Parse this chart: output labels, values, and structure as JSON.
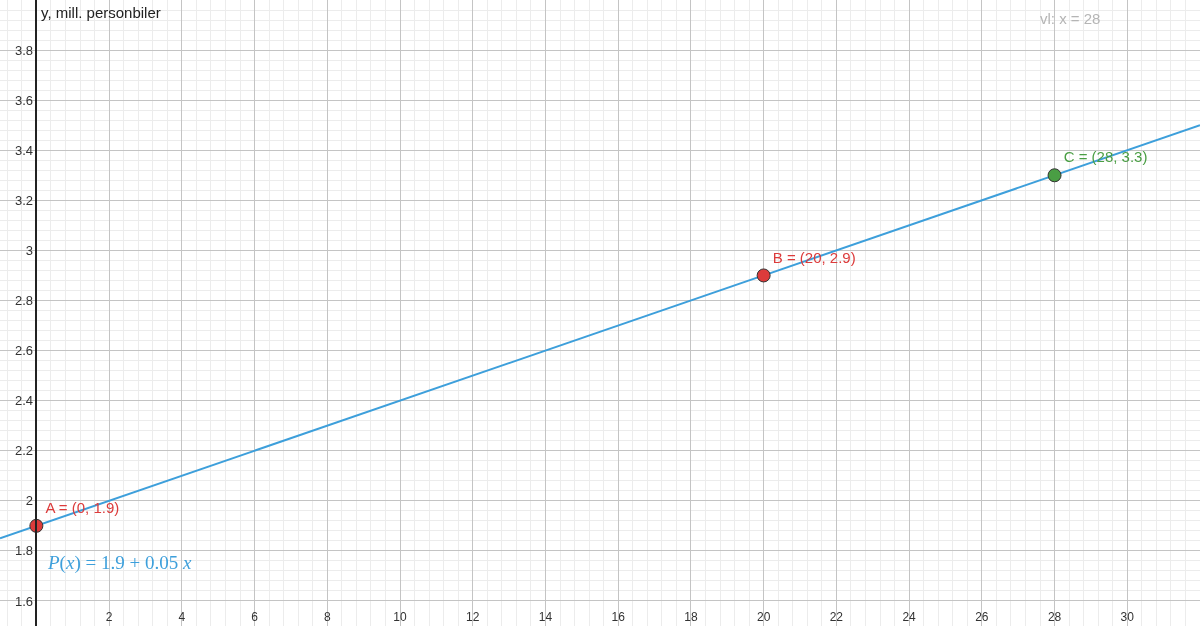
{
  "chart_data": {
    "type": "line",
    "ylabel": "y, mill. personbiler",
    "xlim": [
      -1,
      32
    ],
    "ylim": [
      1.5,
      4
    ],
    "xticks": [
      2,
      4,
      6,
      8,
      10,
      12,
      14,
      16,
      18,
      20,
      22,
      24,
      26,
      28,
      30
    ],
    "yticks": [
      1.6,
      1.8,
      2,
      2.2,
      2.4,
      2.6,
      2.8,
      3,
      3.2,
      3.4,
      3.6,
      3.8
    ],
    "grid": true,
    "series": [
      {
        "name": "P(x) = 1.9 + 0.05 x",
        "color": "#3d9fdb",
        "x": [
          -1,
          32
        ],
        "values": [
          1.85,
          3.5
        ]
      },
      {
        "type": "scatter",
        "marker": "circle",
        "color": "#dc3b3b",
        "x": [
          0,
          20
        ],
        "values": [
          1.9,
          2.9
        ],
        "value_labels": [
          "A = (0, 1.9)",
          "B = (20, 2.9)"
        ]
      },
      {
        "type": "scatter",
        "marker": "circle",
        "color": "#4a9e44",
        "x": [
          28
        ],
        "values": [
          3.3
        ],
        "value_labels": [
          "C = (28, 3.3)"
        ]
      }
    ],
    "annotations": [
      "vl: x = 28"
    ]
  }
}
